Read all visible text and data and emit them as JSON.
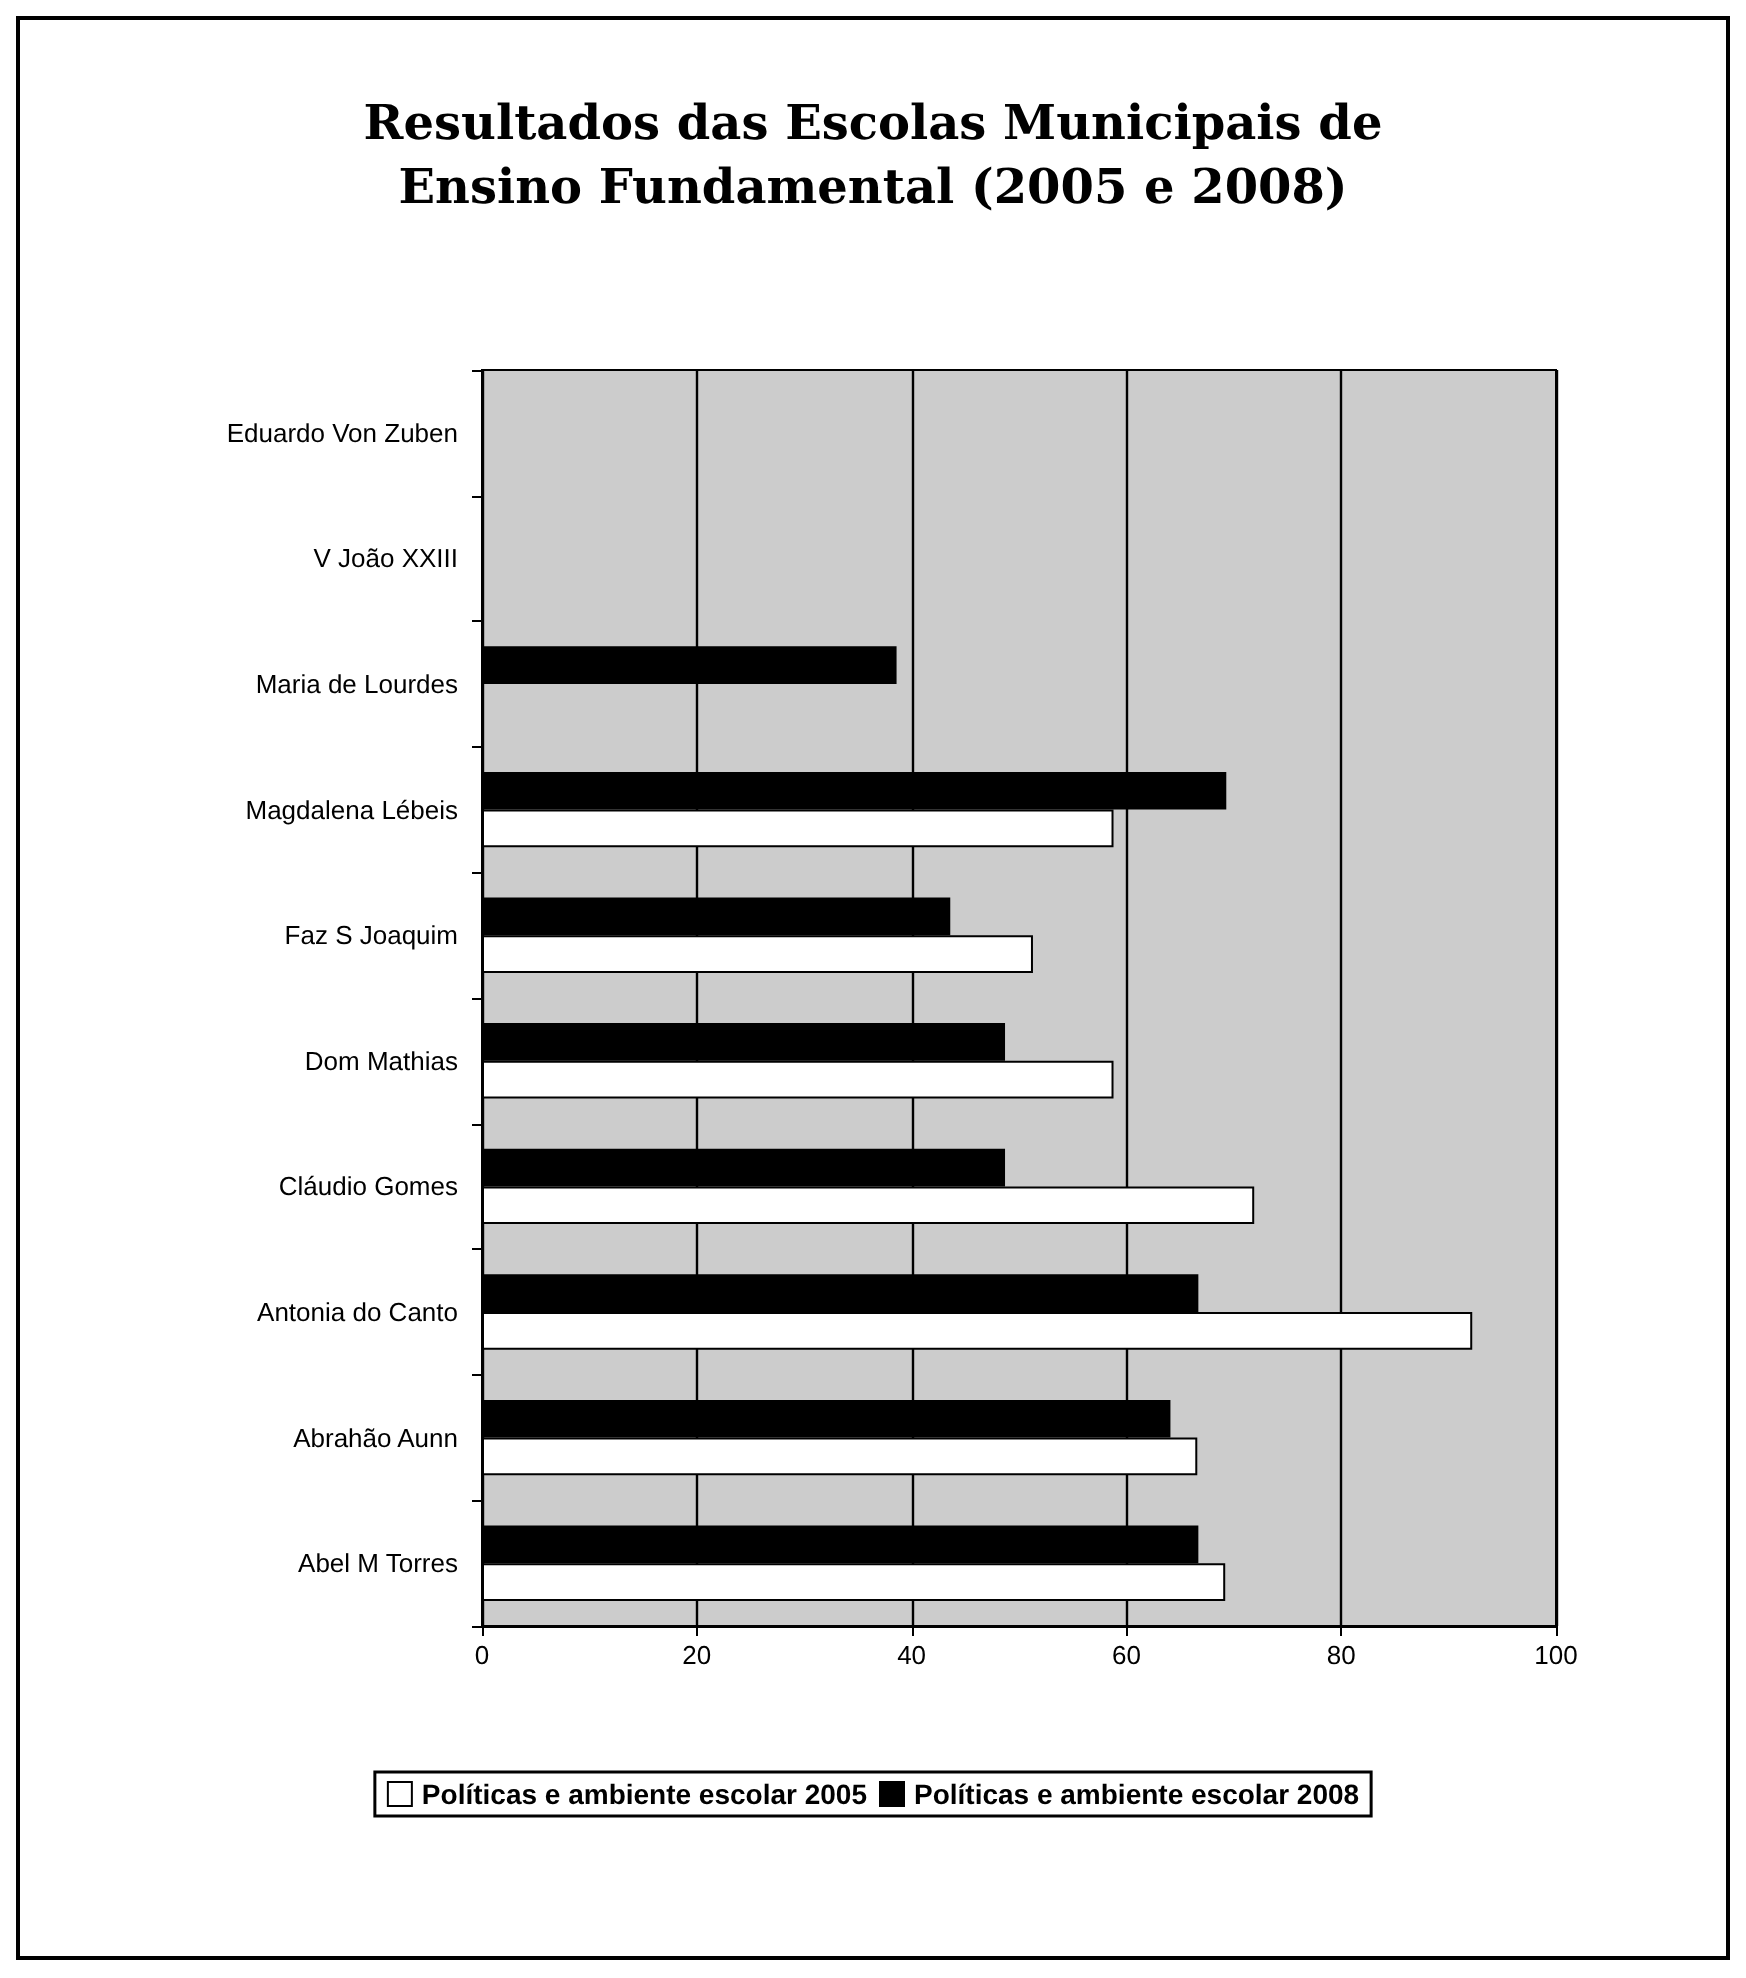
{
  "chart_data": {
    "type": "bar",
    "orientation": "horizontal",
    "title": "Resultados das Escolas Municipais de\nEnsino Fundamental (2005 e 2008)",
    "categories": [
      "Eduardo Von Zuben",
      "V João XXIII",
      "Maria de Lourdes",
      "Magdalena Lébeis",
      "Faz S Joaquim",
      "Dom Mathias",
      "Cláudio Gomes",
      "Antonia do Canto",
      "Abrahão Aunn",
      "Abel M Torres"
    ],
    "series": [
      {
        "name": "Políticas e ambiente escolar 2005",
        "color": "#ffffff",
        "values": [
          null,
          null,
          null,
          58.8,
          51.3,
          58.8,
          71.9,
          92.2,
          66.6,
          69.2
        ]
      },
      {
        "name": "Políticas e ambiente escolar 2008",
        "color": "#000000",
        "values": [
          null,
          null,
          38.6,
          69.3,
          43.6,
          48.7,
          48.7,
          66.7,
          64.1,
          66.7
        ]
      }
    ],
    "xlim": [
      0,
      100
    ],
    "xticks": [
      0,
      20,
      40,
      60,
      80,
      100
    ],
    "grid": "x",
    "legend": "bottom"
  }
}
